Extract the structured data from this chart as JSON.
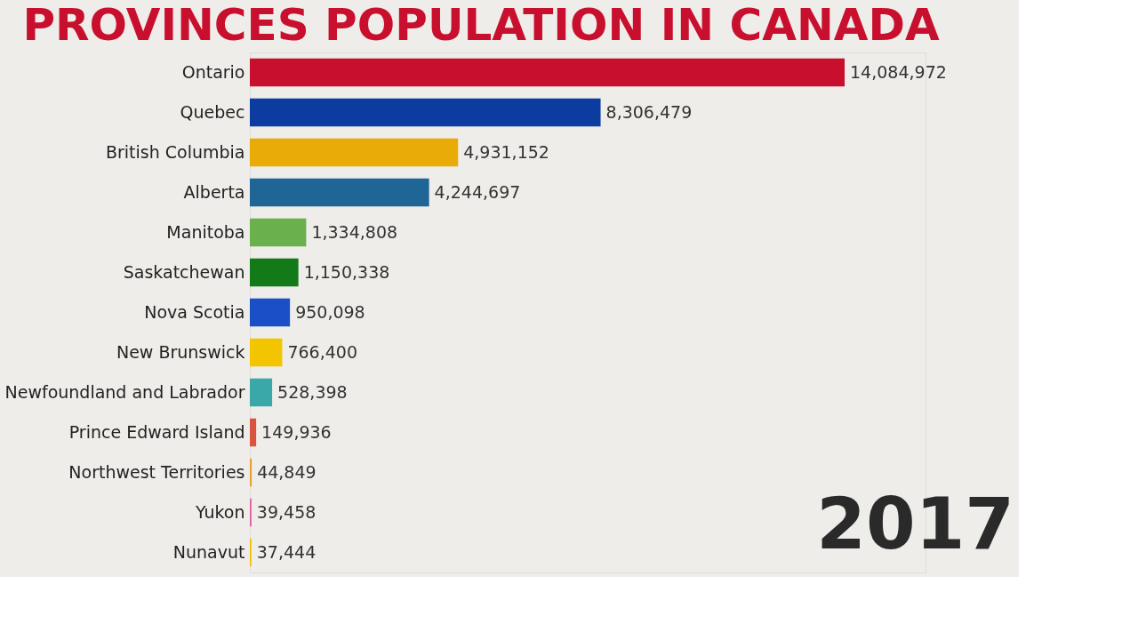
{
  "chart_data": {
    "type": "bar",
    "orientation": "horizontal",
    "title": "PROVINCES POPULATION IN CANADA",
    "categories": [
      "Ontario",
      "Quebec",
      "British Columbia",
      "Alberta",
      "Manitoba",
      "Saskatchewan",
      "Nova Scotia",
      "New Brunswick",
      "Newfoundland and Labrador",
      "Prince Edward Island",
      "Northwest Territories",
      "Yukon",
      "Nunavut"
    ],
    "values": [
      14084972,
      8306479,
      4931152,
      4244697,
      1334808,
      1150338,
      950098,
      766400,
      528398,
      149936,
      44849,
      39458,
      37444
    ],
    "colors": [
      "#c8102e",
      "#0d3ca0",
      "#e8ab08",
      "#1f6595",
      "#6ab04c",
      "#137a1a",
      "#1a4fc8",
      "#f2c500",
      "#3aa8a8",
      "#d9533f",
      "#e8a030",
      "#e060a0",
      "#f0c000"
    ],
    "value_labels": [
      "14,084,972",
      "8,306,479",
      "4,931,152",
      "4,244,697",
      "1,334,808",
      "1,150,338",
      "950,098",
      "766,400",
      "528,398",
      "149,936",
      "44,849",
      "39,458",
      "37,444"
    ],
    "grid": false,
    "annotations": [
      "2017"
    ]
  }
}
